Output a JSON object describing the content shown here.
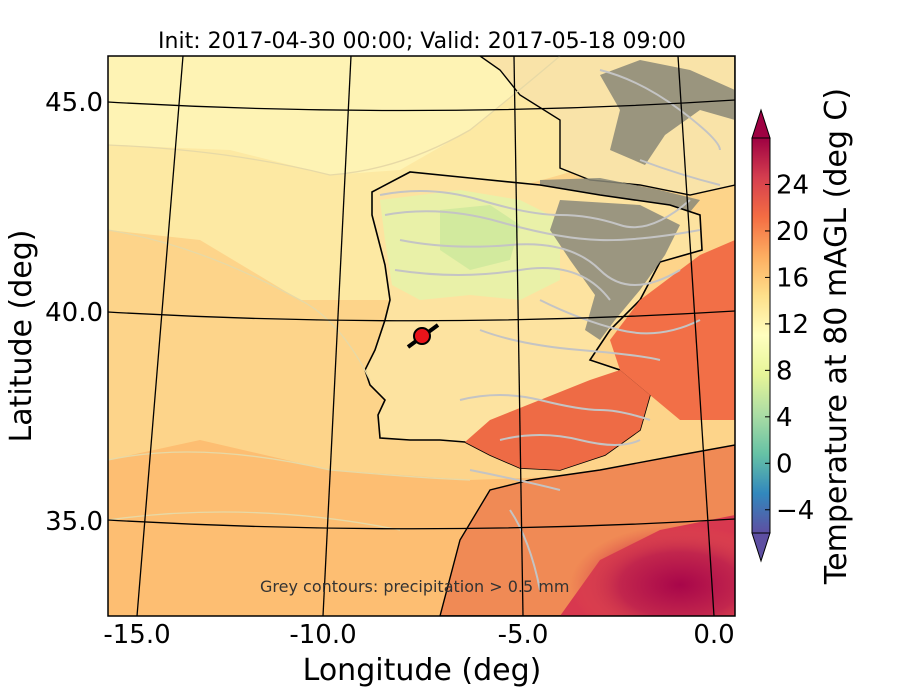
{
  "chart_data": {
    "type": "heatmap",
    "title": "Init: 2017-04-30 00:00; Valid: 2017-05-18 09:00",
    "xlabel": "Longitude (deg)",
    "ylabel": "Latitude (deg)",
    "xlim": [
      -16.0,
      0.2
    ],
    "ylim": [
      32.7,
      46.0
    ],
    "xticks": [
      "-15.0",
      "-10.0",
      "-5.0",
      "0.0"
    ],
    "yticks": [
      "35.0",
      "40.0",
      "45.0"
    ],
    "grid": true,
    "colorbar": {
      "label": "Temperature at 80 mAGL (deg C)",
      "range": [
        -6,
        28
      ],
      "ticks": [
        "−4",
        "0",
        "4",
        "8",
        "12",
        "16",
        "20",
        "24"
      ],
      "extend": "both",
      "colormap": "Spectral_r"
    },
    "annotation": "Grey contours: precipitation  > 0.5 mm",
    "marker": {
      "lon": -7.6,
      "lat": 39.4,
      "color": "#e8141b"
    },
    "colors": {
      "ocean": "#fde9a3",
      "north_atlantic": "#fef2b0",
      "land_warm": "#fdbb6f",
      "hot": "#e85a3a",
      "hottest": "#a8064a",
      "precip_contour": "#c4c4c4",
      "terrain_grey": "#7f7f72"
    }
  }
}
